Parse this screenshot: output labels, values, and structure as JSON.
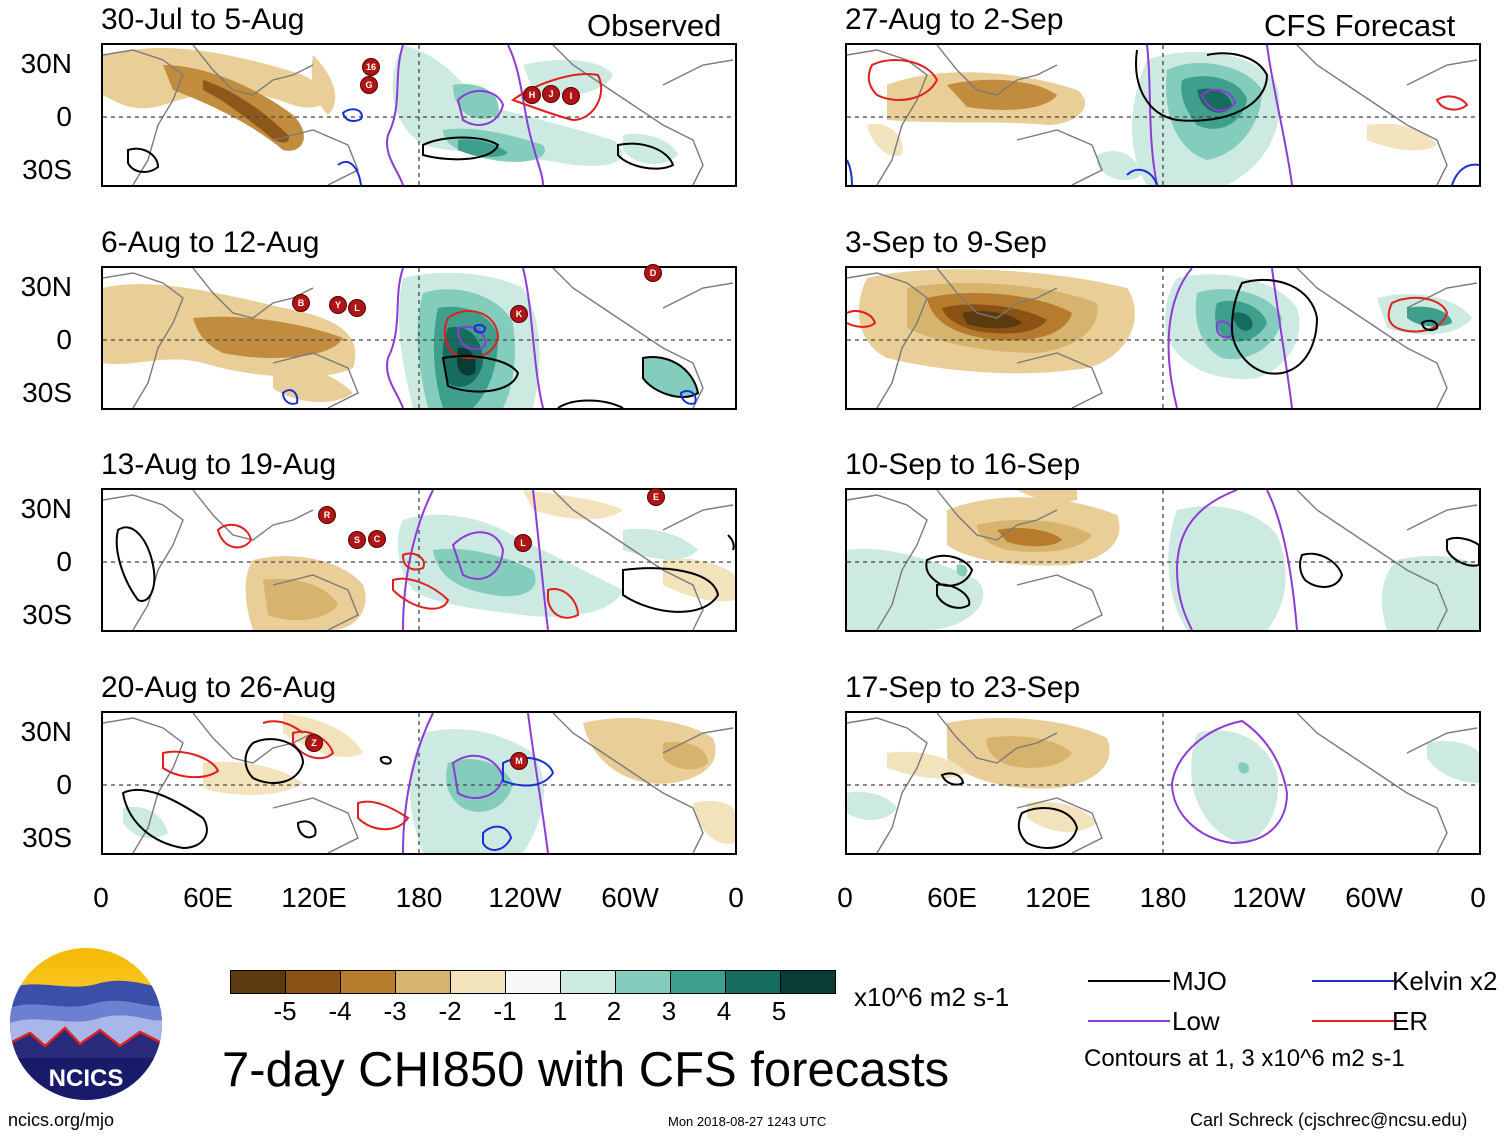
{
  "headers": {
    "observed": "Observed",
    "forecast": "CFS Forecast"
  },
  "lat_labels": [
    "30N",
    "0",
    "30S"
  ],
  "lon_labels": [
    "0",
    "60E",
    "120E",
    "180",
    "120W",
    "60W",
    "0"
  ],
  "panels": [
    {
      "title": "30-Jul to 5-Aug",
      "storms": [
        "16",
        "G",
        "H",
        "J",
        "I"
      ]
    },
    {
      "title": "6-Aug to 12-Aug",
      "storms": [
        "B",
        "Y",
        "L",
        "K",
        "D"
      ]
    },
    {
      "title": "13-Aug to 19-Aug",
      "storms": [
        "R",
        "S",
        "C",
        "L",
        "E"
      ]
    },
    {
      "title": "20-Aug to 26-Aug",
      "storms": [
        "Z",
        "M"
      ]
    },
    {
      "title": "27-Aug to 2-Sep"
    },
    {
      "title": "3-Sep to 9-Sep"
    },
    {
      "title": "10-Sep to 16-Sep"
    },
    {
      "title": "17-Sep to 23-Sep"
    }
  ],
  "colorbar": {
    "colors": [
      "#5c3a0f",
      "#8a5214",
      "#b67b2c",
      "#d7b46e",
      "#f2e3bd",
      "#f7f7f7",
      "#cdeae2",
      "#84cdbd",
      "#3f9f8d",
      "#166c5f",
      "#0a3c33"
    ],
    "labels": [
      "-5",
      "-4",
      "-3",
      "-2",
      "-1",
      "1",
      "2",
      "3",
      "4",
      "5"
    ],
    "units": "x10^6 m2 s-1"
  },
  "legend": {
    "mjo": {
      "label": "MJO",
      "color": "#000000"
    },
    "low": {
      "label": "Low",
      "color": "#8e3bd6"
    },
    "kelvin": {
      "label": "Kelvin x2",
      "color": "#1a2fd6"
    },
    "er": {
      "label": "ER",
      "color": "#e02020"
    },
    "contours_note": "Contours at 1, 3 x10^6 m2 s-1"
  },
  "main_title": "7-day CHI850 with CFS forecasts",
  "logo_text": "NCICS",
  "footer": {
    "url": "ncics.org/mjo",
    "timestamp": "Mon 2018-08-27 1243 UTC",
    "credit": "Carl Schreck (cjschrec@ncsu.edu)"
  }
}
